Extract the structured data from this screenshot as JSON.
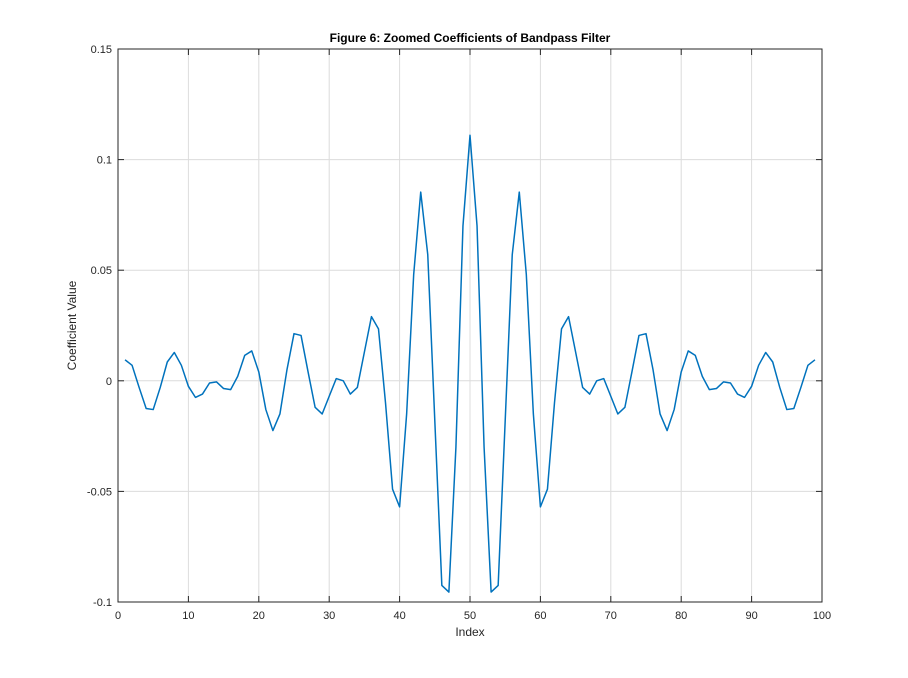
{
  "chart_data": {
    "type": "line",
    "title": "Figure 6: Zoomed Coefficients of Bandpass Filter",
    "xlabel": "Index",
    "ylabel": "Coefficient Value",
    "xlim": [
      0,
      100
    ],
    "ylim": [
      -0.1,
      0.15
    ],
    "xticks": [
      0,
      10,
      20,
      30,
      40,
      50,
      60,
      70,
      80,
      90,
      100
    ],
    "xtick_labels": [
      "0",
      "10",
      "20",
      "30",
      "40",
      "50",
      "60",
      "70",
      "80",
      "90",
      "100"
    ],
    "yticks": [
      -0.1,
      -0.05,
      0,
      0.05,
      0.1,
      0.15
    ],
    "ytick_labels": [
      "-0.1",
      "-0.05",
      "0",
      "0.05",
      "0.1",
      "0.15"
    ],
    "grid": true,
    "series": [
      {
        "color": "#0072BD",
        "x": [
          1,
          2,
          3,
          4,
          5,
          6,
          7,
          8,
          9,
          10,
          11,
          12,
          13,
          14,
          15,
          16,
          17,
          18,
          19,
          20,
          21,
          22,
          23,
          24,
          25,
          26,
          27,
          28,
          29,
          30,
          31,
          32,
          33,
          34,
          35,
          36,
          37,
          38,
          39,
          40,
          41,
          42,
          43,
          44,
          45,
          46,
          47,
          48,
          49,
          50,
          51,
          52,
          53,
          54,
          55,
          56,
          57,
          58,
          59,
          60,
          61,
          62,
          63,
          64,
          65,
          66,
          67,
          68,
          69,
          70,
          71,
          72,
          73,
          74,
          75,
          76,
          77,
          78,
          79,
          80,
          81,
          82,
          83,
          84,
          85,
          86,
          87,
          88,
          89,
          90,
          91,
          92,
          93,
          94,
          95,
          96,
          97,
          98,
          99
        ],
        "y": [
          0.0095,
          0.007,
          -0.003,
          -0.0125,
          -0.013,
          -0.003,
          0.0085,
          0.0128,
          0.007,
          -0.0025,
          -0.0075,
          -0.006,
          -0.001,
          -0.0005,
          -0.0035,
          -0.004,
          0.002,
          0.0115,
          0.0135,
          0.004,
          -0.013,
          -0.0225,
          -0.015,
          0.005,
          0.0213,
          0.0205,
          0.004,
          -0.012,
          -0.015,
          -0.007,
          0.001,
          0.0,
          -0.006,
          -0.003,
          0.013,
          0.029,
          0.0235,
          -0.01,
          -0.049,
          -0.057,
          -0.015,
          0.048,
          0.0853,
          0.057,
          -0.018,
          -0.0925,
          -0.0955,
          -0.03,
          0.07,
          0.111,
          0.07,
          -0.03,
          -0.0955,
          -0.0925,
          -0.018,
          0.057,
          0.0853,
          0.048,
          -0.015,
          -0.057,
          -0.049,
          -0.01,
          0.0235,
          0.029,
          0.013,
          -0.003,
          -0.006,
          0.0,
          0.001,
          -0.007,
          -0.015,
          -0.012,
          0.004,
          0.0205,
          0.0213,
          0.005,
          -0.015,
          -0.0225,
          -0.013,
          0.004,
          0.0135,
          0.0115,
          0.002,
          -0.004,
          -0.0035,
          -0.0005,
          -0.001,
          -0.006,
          -0.0075,
          -0.0025,
          0.007,
          0.0128,
          0.0085,
          -0.003,
          -0.013,
          -0.0125,
          -0.003,
          0.007,
          0.0095
        ]
      }
    ]
  }
}
